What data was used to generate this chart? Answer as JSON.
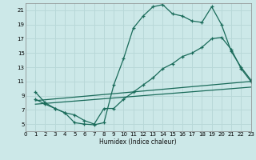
{
  "xlabel": "Humidex (Indice chaleur)",
  "background_color": "#cce8e8",
  "grid_color": "#b8d8d8",
  "line_color": "#1a6b5a",
  "xlim": [
    0,
    23
  ],
  "ylim": [
    4,
    22
  ],
  "xticks": [
    0,
    1,
    2,
    3,
    4,
    5,
    6,
    7,
    8,
    9,
    10,
    11,
    12,
    13,
    14,
    15,
    16,
    17,
    18,
    19,
    20,
    21,
    22,
    23
  ],
  "yticks": [
    5,
    7,
    9,
    11,
    13,
    15,
    17,
    19,
    21
  ],
  "line1_x": [
    1,
    2,
    3,
    4,
    5,
    6,
    7,
    8,
    9,
    10,
    11,
    12,
    13,
    14,
    15,
    16,
    17,
    18,
    19,
    20,
    21,
    22,
    23
  ],
  "line1_y": [
    9.5,
    8.0,
    7.2,
    6.6,
    5.2,
    5.0,
    4.9,
    5.2,
    10.5,
    14.2,
    18.5,
    20.2,
    21.5,
    21.8,
    20.5,
    20.2,
    19.5,
    19.3,
    21.5,
    19.0,
    15.2,
    13.0,
    11.2
  ],
  "line2_x": [
    1,
    2,
    3,
    4,
    5,
    6,
    7,
    8,
    9,
    10,
    11,
    12,
    13,
    14,
    15,
    16,
    17,
    18,
    19,
    20,
    21,
    22,
    23
  ],
  "line2_y": [
    8.5,
    7.8,
    7.2,
    6.6,
    6.3,
    5.5,
    5.0,
    7.2,
    7.2,
    8.5,
    9.5,
    10.5,
    11.5,
    12.8,
    13.5,
    14.5,
    15.0,
    15.8,
    17.0,
    17.2,
    15.5,
    12.8,
    11.0
  ],
  "line3_x": [
    1,
    23
  ],
  "line3_y": [
    8.3,
    11.0
  ],
  "line4_x": [
    1,
    23
  ],
  "line4_y": [
    7.8,
    10.2
  ]
}
